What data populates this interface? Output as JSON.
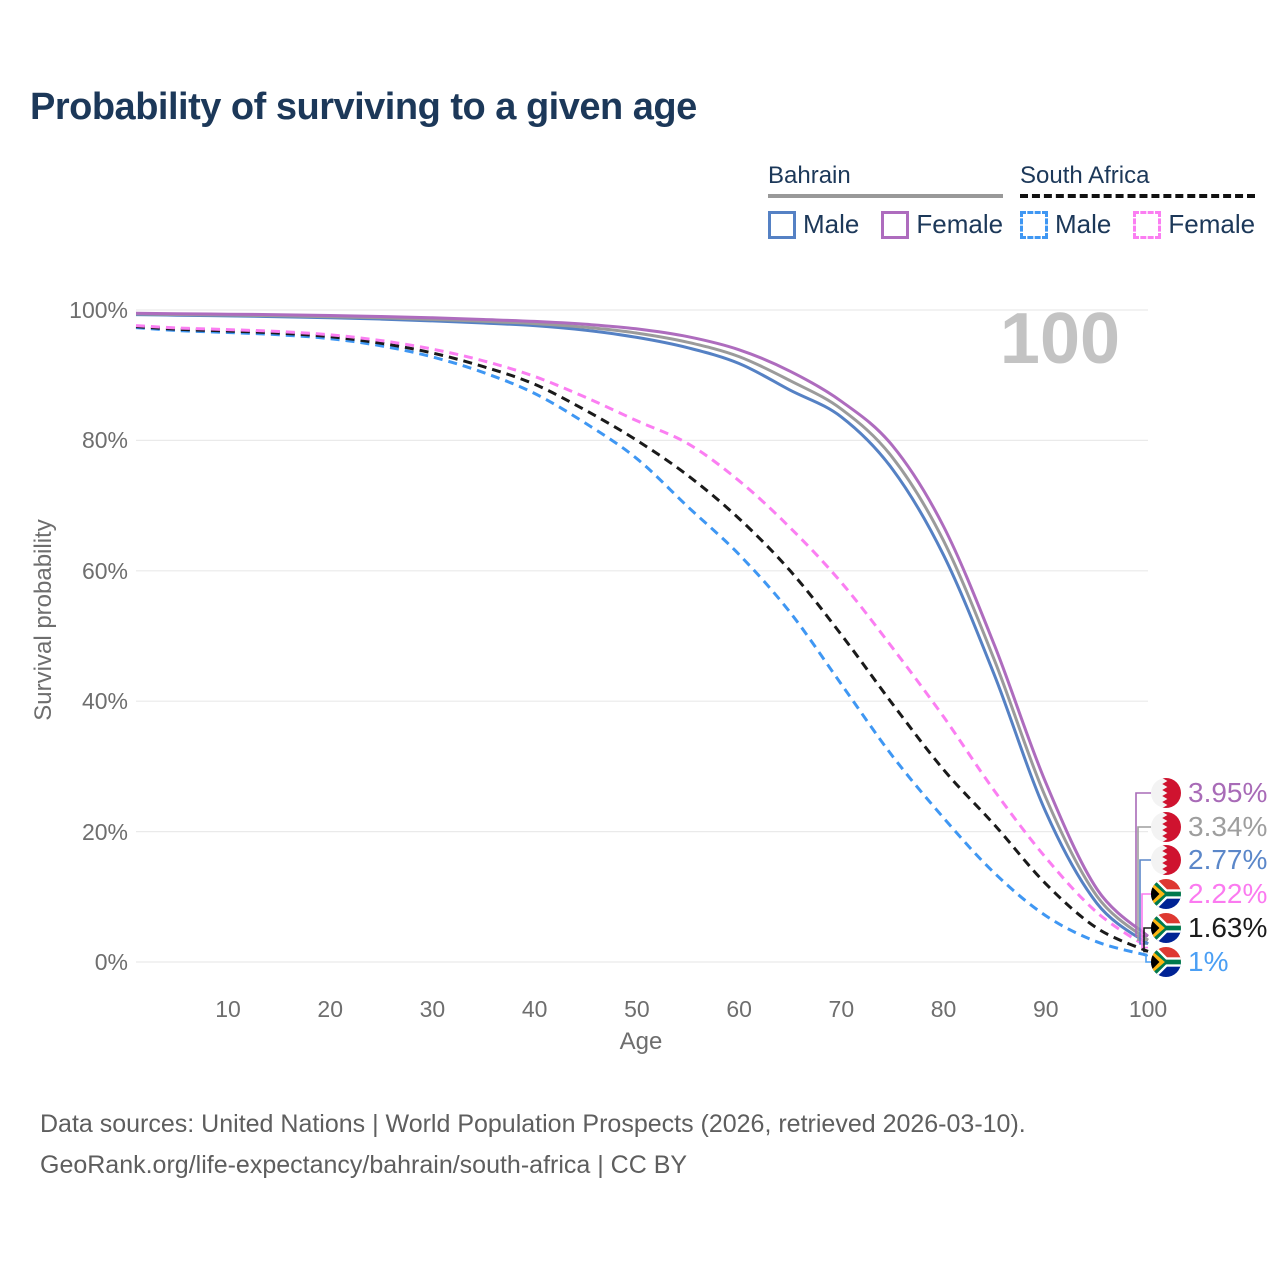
{
  "title": "Probability of surviving to a given age",
  "watermark": "100",
  "legend": {
    "groups": [
      {
        "label": "Bahrain",
        "line_style": "solid",
        "line_color": "#999999",
        "items": [
          {
            "label": "Male",
            "color": "#5581c4"
          },
          {
            "label": "Female",
            "color": "#ae6cbe"
          }
        ]
      },
      {
        "label": "South Africa",
        "line_style": "dashed",
        "line_color": "#111111",
        "items": [
          {
            "label": "Male",
            "color": "#3f97f3"
          },
          {
            "label": "Female",
            "color": "#fb7ef2"
          }
        ]
      }
    ]
  },
  "footer": {
    "line1": "Data sources: United Nations | World Population Prospects (2026, retrieved 2026-03-10).",
    "line2": "GeoRank.org/life-expectancy/bahrain/south-africa | CC BY"
  },
  "chart_data": {
    "type": "line",
    "title": "Probability of surviving to a given age",
    "xlabel": "Age",
    "ylabel": "Survival probability",
    "xlim": [
      1,
      100
    ],
    "ylim": [
      0,
      100
    ],
    "grid": "horizontal",
    "legend_position": "top-right",
    "x_ticks": [
      10,
      20,
      30,
      40,
      50,
      60,
      70,
      80,
      90,
      100
    ],
    "y_ticks": [
      {
        "value": 0,
        "label": "0%"
      },
      {
        "value": 20,
        "label": "20%"
      },
      {
        "value": 40,
        "label": "40%"
      },
      {
        "value": 60,
        "label": "60%"
      },
      {
        "value": 80,
        "label": "80%"
      },
      {
        "value": 100,
        "label": "100%"
      }
    ],
    "x": [
      1,
      5,
      10,
      15,
      20,
      25,
      30,
      35,
      40,
      45,
      50,
      55,
      60,
      65,
      70,
      75,
      80,
      85,
      90,
      95,
      100
    ],
    "series": [
      {
        "name": "South Africa Male",
        "country": "South Africa",
        "sex": "Male",
        "style": "dashed",
        "color": "#3f97f3",
        "end_label": "1%",
        "values": [
          97.3,
          96.85,
          96.55,
          96.2,
          95.6,
          94.5,
          92.8,
          90.4,
          87.2,
          82.6,
          77.2,
          69.8,
          62.5,
          53.6,
          42.6,
          31.6,
          22.1,
          13.6,
          7.1,
          3.1,
          1.0
        ]
      },
      {
        "name": "South Africa Both sexes",
        "country": "South Africa",
        "sex": "Both",
        "style": "dashed",
        "color": "#1a1a1a",
        "end_label": "1.63%",
        "values": [
          97.45,
          97.05,
          96.78,
          96.45,
          95.9,
          94.9,
          93.4,
          91.3,
          88.6,
          84.6,
          80.0,
          74.6,
          68.0,
          60.0,
          50.2,
          39.6,
          29.5,
          21.0,
          12.0,
          5.2,
          1.63
        ]
      },
      {
        "name": "South Africa Female",
        "country": "South Africa",
        "sex": "Female",
        "style": "dashed",
        "color": "#fb7ef2",
        "end_label": "2.22%",
        "values": [
          97.6,
          97.25,
          97.0,
          96.7,
          96.2,
          95.3,
          94.0,
          92.2,
          89.8,
          86.6,
          83.0,
          79.5,
          73.8,
          66.6,
          58.2,
          48.2,
          37.6,
          26.2,
          16.0,
          7.6,
          2.22
        ]
      },
      {
        "name": "Bahrain Male",
        "country": "Bahrain",
        "sex": "Male",
        "style": "solid",
        "color": "#5581c4",
        "end_label": "2.77%",
        "values": [
          99.3,
          99.2,
          99.1,
          98.97,
          98.8,
          98.6,
          98.33,
          98.0,
          97.6,
          96.9,
          95.8,
          94.2,
          91.8,
          87.7,
          83.6,
          75.6,
          62.4,
          43.9,
          23.0,
          9.0,
          2.77
        ]
      },
      {
        "name": "Bahrain Both sexes",
        "country": "Bahrain",
        "sex": "Both",
        "style": "solid",
        "color": "#9b9b9b",
        "end_label": "3.34%",
        "values": [
          99.4,
          99.31,
          99.23,
          99.12,
          98.97,
          98.8,
          98.56,
          98.27,
          97.92,
          97.35,
          96.45,
          95.05,
          92.85,
          89.15,
          84.8,
          77.4,
          64.6,
          46.2,
          25.2,
          10.1,
          3.34
        ]
      },
      {
        "name": "Bahrain Female",
        "country": "Bahrain",
        "sex": "Female",
        "style": "solid",
        "color": "#ae6cbe",
        "end_label": "3.95%",
        "values": [
          99.5,
          99.42,
          99.36,
          99.27,
          99.15,
          99.0,
          98.8,
          98.55,
          98.25,
          97.8,
          97.1,
          95.9,
          93.9,
          90.6,
          86.0,
          79.2,
          66.8,
          48.5,
          27.5,
          11.2,
          3.95
        ]
      }
    ],
    "end_labels": [
      {
        "text": "3.95%",
        "color": "#a86bb7",
        "flag": "bahrain",
        "series_index": 5
      },
      {
        "text": "3.34%",
        "color": "#9e9e9e",
        "flag": "bahrain",
        "series_index": 4
      },
      {
        "text": "2.77%",
        "color": "#5b87c9",
        "flag": "bahrain",
        "series_index": 3
      },
      {
        "text": "2.22%",
        "color": "#fb7af0",
        "flag": "south-africa",
        "series_index": 2
      },
      {
        "text": "1.63%",
        "color": "#1b1b1b",
        "flag": "south-africa",
        "series_index": 1
      },
      {
        "text": "1%",
        "color": "#4b9ff4",
        "flag": "south-africa",
        "series_index": 0
      }
    ]
  }
}
